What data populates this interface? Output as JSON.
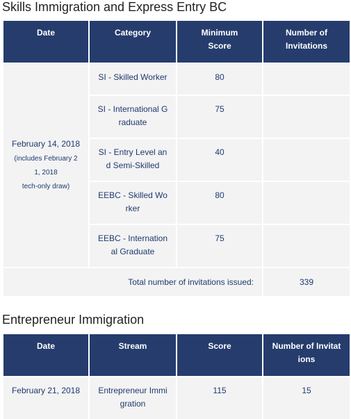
{
  "skills": {
    "title": "Skills Immigration and Express Entry BC",
    "headers": {
      "date": "Date",
      "category": "Category",
      "min_score_1": "Minimum",
      "min_score_2": "Score",
      "invitations_1": "Number of",
      "invitations_2": "Invitations"
    },
    "date_main": "February 14, 2018",
    "date_note_1": "(includes February 2",
    "date_note_2": "1, 2018",
    "date_note_3": "tech-only draw)",
    "rows": [
      {
        "category_1": "SI - Skilled Worker",
        "category_2": "",
        "score": "80",
        "invitations": ""
      },
      {
        "category_1": "SI - International G",
        "category_2": "raduate",
        "score": "75",
        "invitations": ""
      },
      {
        "category_1": "SI - Entry Level an",
        "category_2": "d Semi-Skilled",
        "score": "40",
        "invitations": ""
      },
      {
        "category_1": "EEBC - Skilled Wo",
        "category_2": "rker",
        "score": "80",
        "invitations": ""
      },
      {
        "category_1": "EEBC - Internation",
        "category_2": "al Graduate",
        "score": "75",
        "invitations": ""
      }
    ],
    "total_label": "Total number of invitations issued:",
    "total_value": "339"
  },
  "entrepreneur": {
    "title": "Entrepreneur Immigration",
    "headers": {
      "date": "Date",
      "stream": "Stream",
      "score": "Score",
      "invitations_1": "Number of Invitat",
      "invitations_2": "ions"
    },
    "row": {
      "date": "February 21, 2018",
      "stream_1": "Entrepreneur Immi",
      "stream_2": "gration",
      "score": "115",
      "invitations": "15"
    }
  }
}
